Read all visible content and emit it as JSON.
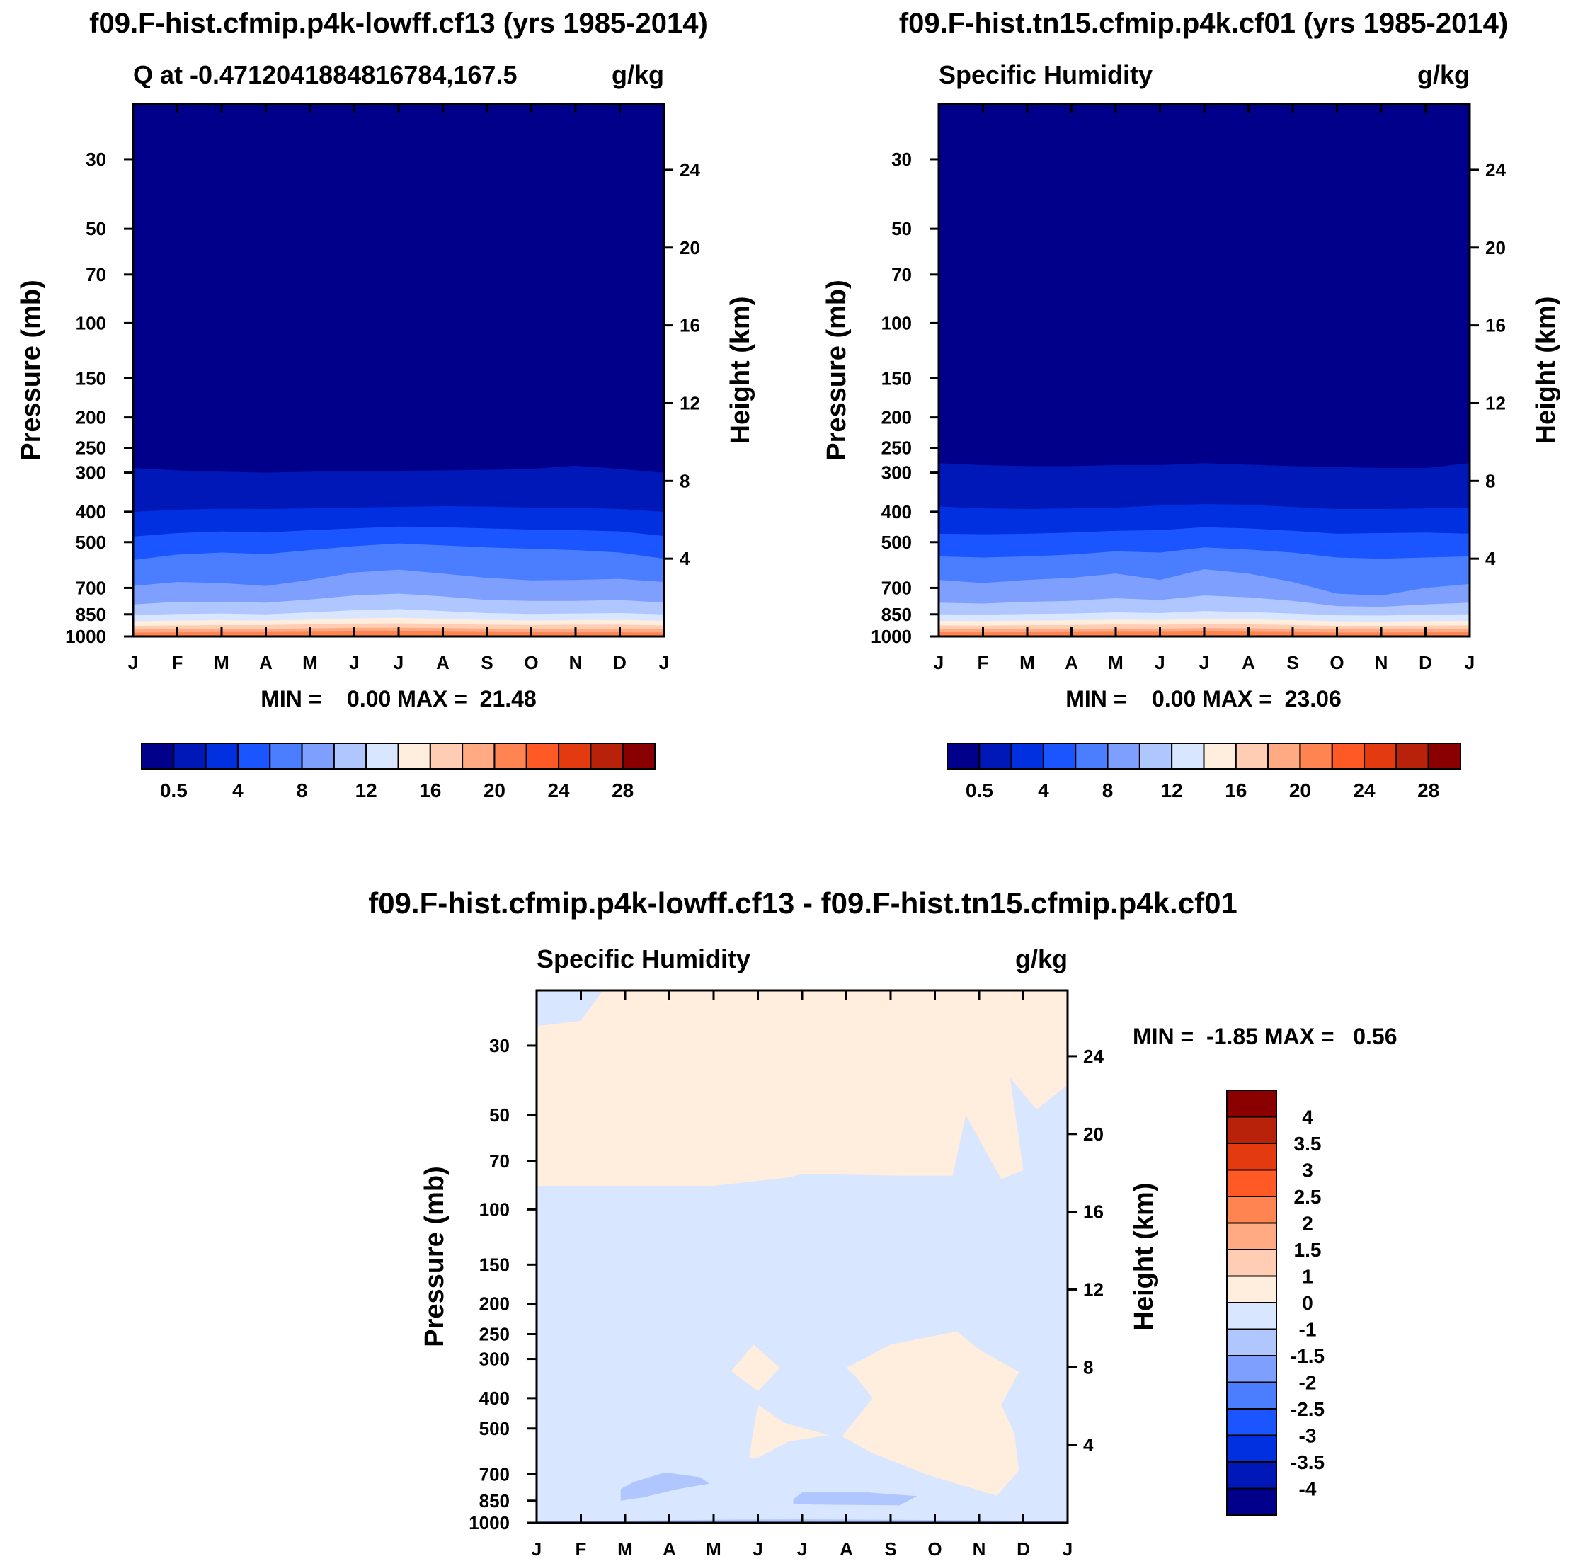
{
  "chart_data": [
    {
      "type": "heatmap",
      "title": "f09.F-hist.cfmip.p4k-lowff.cf13 (yrs 1985-2014)",
      "subtitle_left": "Q at -0.4712041884816784,167.5",
      "subtitle_right": "g/kg",
      "ylabel": "Pressure (mb)",
      "ylabel_right": "Height (km)",
      "x_ticks": [
        "J",
        "F",
        "M",
        "A",
        "M",
        "J",
        "J",
        "A",
        "S",
        "O",
        "N",
        "D",
        "J"
      ],
      "y_ticks": [
        30,
        50,
        70,
        100,
        150,
        200,
        250,
        300,
        400,
        500,
        700,
        850,
        1000
      ],
      "y_ticks_right": [
        24,
        20,
        16,
        12,
        8,
        4
      ],
      "ylim": [
        20,
        1000
      ],
      "stats": "MIN =    0.00 MAX =  21.48",
      "colorbar": {
        "levels": [
          0.5,
          2,
          4,
          6,
          8,
          10,
          12,
          14,
          16,
          18,
          20,
          22,
          24,
          26,
          28
        ],
        "tick_labels": [
          "0.5",
          "4",
          "8",
          "12",
          "16",
          "20",
          "24",
          "28"
        ],
        "colors": [
          "#00008b",
          "#0018b8",
          "#0030e0",
          "#1a55ff",
          "#4a7dff",
          "#7f9fff",
          "#b0c6ff",
          "#d8e7ff",
          "#ffeedd",
          "#ffcdb4",
          "#ffaa82",
          "#ff8451",
          "#ff5a26",
          "#e33a10",
          "#b8210a",
          "#8a0000"
        ]
      },
      "contours_pressure_mb": [
        {
          "level": 0.5,
          "y": [
            290,
            295,
            298,
            300,
            298,
            296,
            296,
            295,
            294,
            292,
            285,
            292,
            300
          ]
        },
        {
          "level": 2,
          "y": [
            400,
            394,
            391,
            392,
            390,
            388,
            386,
            384,
            385,
            388,
            388,
            392,
            400
          ]
        },
        {
          "level": 4,
          "y": [
            480,
            468,
            462,
            466,
            458,
            452,
            446,
            448,
            452,
            456,
            458,
            462,
            478
          ]
        },
        {
          "level": 6,
          "y": [
            570,
            548,
            540,
            546,
            530,
            515,
            505,
            512,
            520,
            525,
            530,
            540,
            565
          ]
        },
        {
          "level": 8,
          "y": [
            690,
            670,
            675,
            690,
            660,
            625,
            612,
            630,
            650,
            662,
            660,
            655,
            670
          ]
        },
        {
          "level": 10,
          "y": [
            790,
            775,
            775,
            780,
            762,
            740,
            730,
            745,
            765,
            770,
            770,
            765,
            780
          ]
        },
        {
          "level": 12,
          "y": [
            855,
            848,
            845,
            850,
            838,
            825,
            818,
            830,
            842,
            848,
            845,
            842,
            850
          ]
        },
        {
          "level": 14,
          "y": [
            895,
            890,
            888,
            890,
            884,
            876,
            872,
            880,
            886,
            890,
            888,
            886,
            892
          ]
        },
        {
          "level": 16,
          "y": [
            925,
            922,
            920,
            920,
            915,
            910,
            908,
            912,
            918,
            920,
            918,
            918,
            922
          ]
        },
        {
          "level": 18,
          "y": [
            950,
            948,
            946,
            946,
            942,
            938,
            938,
            940,
            944,
            946,
            946,
            946,
            948
          ]
        },
        {
          "level": 20,
          "y": [
            972,
            970,
            968,
            968,
            966,
            964,
            963,
            965,
            968,
            970,
            970,
            970,
            972
          ]
        }
      ]
    },
    {
      "type": "heatmap",
      "title": "f09.F-hist.tn15.cfmip.p4k.cf01 (yrs 1985-2014)",
      "subtitle_left": "Specific Humidity",
      "subtitle_right": "g/kg",
      "ylabel": "Pressure (mb)",
      "ylabel_right": "Height (km)",
      "x_ticks": [
        "J",
        "F",
        "M",
        "A",
        "M",
        "J",
        "J",
        "A",
        "S",
        "O",
        "N",
        "D",
        "J"
      ],
      "y_ticks": [
        30,
        50,
        70,
        100,
        150,
        200,
        250,
        300,
        400,
        500,
        700,
        850,
        1000
      ],
      "y_ticks_right": [
        24,
        20,
        16,
        12,
        8,
        4
      ],
      "ylim": [
        20,
        1000
      ],
      "stats": "MIN =    0.00 MAX =  23.06",
      "colorbar": {
        "levels": [
          0.5,
          2,
          4,
          6,
          8,
          10,
          12,
          14,
          16,
          18,
          20,
          22,
          24,
          26,
          28
        ],
        "tick_labels": [
          "0.5",
          "4",
          "8",
          "12",
          "16",
          "20",
          "24",
          "28"
        ],
        "colors": [
          "#00008b",
          "#0018b8",
          "#0030e0",
          "#1a55ff",
          "#4a7dff",
          "#7f9fff",
          "#b0c6ff",
          "#d8e7ff",
          "#ffeedd",
          "#ffcdb4",
          "#ffaa82",
          "#ff8451",
          "#ff5a26",
          "#e33a10",
          "#b8210a",
          "#8a0000"
        ]
      },
      "contours_pressure_mb": [
        {
          "level": 0.5,
          "y": [
            280,
            284,
            286,
            286,
            284,
            284,
            280,
            283,
            286,
            288,
            290,
            290,
            280
          ]
        },
        {
          "level": 2,
          "y": [
            385,
            390,
            392,
            390,
            388,
            382,
            378,
            380,
            386,
            392,
            392,
            390,
            388
          ]
        },
        {
          "level": 4,
          "y": [
            470,
            472,
            470,
            466,
            460,
            458,
            448,
            452,
            460,
            470,
            468,
            466,
            470
          ]
        },
        {
          "level": 6,
          "y": [
            555,
            560,
            555,
            548,
            535,
            540,
            520,
            528,
            540,
            560,
            565,
            560,
            555
          ]
        },
        {
          "level": 8,
          "y": [
            660,
            675,
            660,
            650,
            630,
            660,
            610,
            630,
            670,
            730,
            740,
            700,
            680
          ]
        },
        {
          "level": 10,
          "y": [
            780,
            785,
            775,
            770,
            755,
            765,
            740,
            750,
            770,
            800,
            805,
            790,
            780
          ]
        },
        {
          "level": 12,
          "y": [
            850,
            852,
            848,
            845,
            838,
            842,
            830,
            836,
            845,
            856,
            858,
            852,
            850
          ]
        },
        {
          "level": 14,
          "y": [
            892,
            893,
            890,
            888,
            884,
            886,
            878,
            882,
            888,
            895,
            896,
            893,
            892
          ]
        },
        {
          "level": 16,
          "y": [
            922,
            923,
            921,
            920,
            916,
            918,
            912,
            915,
            920,
            925,
            925,
            923,
            922
          ]
        },
        {
          "level": 18,
          "y": [
            947,
            948,
            946,
            945,
            943,
            944,
            940,
            942,
            945,
            949,
            949,
            948,
            947
          ]
        },
        {
          "level": 20,
          "y": [
            969,
            970,
            969,
            968,
            966,
            967,
            964,
            966,
            968,
            971,
            971,
            970,
            969
          ]
        }
      ]
    },
    {
      "type": "heatmap",
      "title": "f09.F-hist.cfmip.p4k-lowff.cf13 - f09.F-hist.tn15.cfmip.p4k.cf01",
      "subtitle_left": "Specific Humidity",
      "subtitle_right": "g/kg",
      "ylabel": "Pressure (mb)",
      "ylabel_right": "Height (km)",
      "x_ticks": [
        "J",
        "F",
        "M",
        "A",
        "M",
        "J",
        "J",
        "A",
        "S",
        "O",
        "N",
        "D",
        "J"
      ],
      "y_ticks": [
        30,
        50,
        70,
        100,
        150,
        200,
        250,
        300,
        400,
        500,
        700,
        850,
        1000
      ],
      "y_ticks_right": [
        24,
        20,
        16,
        12,
        8,
        4
      ],
      "ylim": [
        20,
        1000
      ],
      "stats": "MIN =  -1.85 MAX =   0.56",
      "background_color": "#d8e7ff",
      "colorbar": {
        "levels": [
          -4,
          -3.5,
          -3,
          -2.5,
          -2,
          -1.5,
          -1,
          0,
          1,
          1.5,
          2,
          2.5,
          3,
          3.5,
          4
        ],
        "tick_labels": [
          "-4",
          "-3.5",
          "-3",
          "-2.5",
          "-2",
          "-1.5",
          "-1",
          "0",
          "1",
          "1.5",
          "2",
          "2.5",
          "3",
          "3.5",
          "4"
        ],
        "colors": [
          "#00008b",
          "#0018b8",
          "#0030e0",
          "#1a55ff",
          "#4a7dff",
          "#7f9fff",
          "#b0c6ff",
          "#d8e7ff",
          "#ffeedd",
          "#ffcdb4",
          "#ffaa82",
          "#ff8451",
          "#ff5a26",
          "#e33a10",
          "#b8210a",
          "#8a0000"
        ]
      },
      "regions": [
        {
          "level_range": "0 to 1",
          "color": "#ffeedd",
          "points": [
            [
              0,
              26
            ],
            [
              1,
              25
            ],
            [
              1.5,
              20
            ],
            [
              12,
              20
            ],
            [
              12,
              40
            ],
            [
              11.3,
              48
            ],
            [
              10.7,
              38
            ],
            [
              11,
              75
            ],
            [
              10.5,
              80
            ],
            [
              9.7,
              50
            ],
            [
              9.4,
              78
            ],
            [
              8.2,
              78
            ],
            [
              6,
              77
            ],
            [
              5.7,
              79
            ],
            [
              4,
              84
            ],
            [
              0,
              84
            ]
          ]
        },
        {
          "level_range": "0 to 1",
          "color": "#ffeedd",
          "points": [
            [
              4.4,
              328
            ],
            [
              4.9,
              270
            ],
            [
              5.5,
              320
            ],
            [
              5,
              380
            ],
            [
              4.4,
              328
            ]
          ]
        },
        {
          "level_range": "0 to 1",
          "color": "#ffeedd",
          "points": [
            [
              4.8,
              620
            ],
            [
              5,
              420
            ],
            [
              5.6,
              480
            ],
            [
              6.6,
              525
            ],
            [
              5.7,
              550
            ],
            [
              5,
              620
            ],
            [
              4.8,
              620
            ]
          ]
        },
        {
          "level_range": "0 to 1",
          "color": "#ffeedd",
          "points": [
            [
              7,
              320
            ],
            [
              8,
              270
            ],
            [
              9.5,
              245
            ],
            [
              10,
              280
            ],
            [
              10.9,
              330
            ],
            [
              10.5,
              420
            ],
            [
              10.8,
              520
            ],
            [
              10.9,
              680
            ],
            [
              10.4,
              820
            ],
            [
              8.8,
              700
            ],
            [
              7.6,
              600
            ],
            [
              6.9,
              530
            ],
            [
              7.6,
              400
            ],
            [
              7.2,
              340
            ],
            [
              7,
              320
            ]
          ]
        },
        {
          "level_range": "-1.5 to -1",
          "color": "#b0c6ff",
          "points": [
            [
              1.9,
              780
            ],
            [
              2.2,
              740
            ],
            [
              2.9,
              690
            ],
            [
              3.7,
              715
            ],
            [
              3.9,
              750
            ],
            [
              3.2,
              780
            ],
            [
              2.4,
              830
            ],
            [
              1.9,
              850
            ],
            [
              1.9,
              780
            ]
          ]
        },
        {
          "level_range": "-1.5 to -1",
          "color": "#b0c6ff",
          "points": [
            [
              5.8,
              840
            ],
            [
              6.0,
              800
            ],
            [
              7.5,
              800
            ],
            [
              8.6,
              822
            ],
            [
              8.2,
              880
            ],
            [
              6.3,
              875
            ],
            [
              5.8,
              870
            ],
            [
              5.8,
              840
            ]
          ]
        },
        {
          "level_range": "-1.5 to -1",
          "color": "#b0c6ff",
          "points": [
            [
              0,
              990
            ],
            [
              4,
              978
            ],
            [
              6,
              975
            ],
            [
              8,
              978
            ],
            [
              10,
              982
            ],
            [
              12,
              988
            ],
            [
              12,
              1000
            ],
            [
              0,
              1000
            ]
          ]
        }
      ]
    }
  ]
}
